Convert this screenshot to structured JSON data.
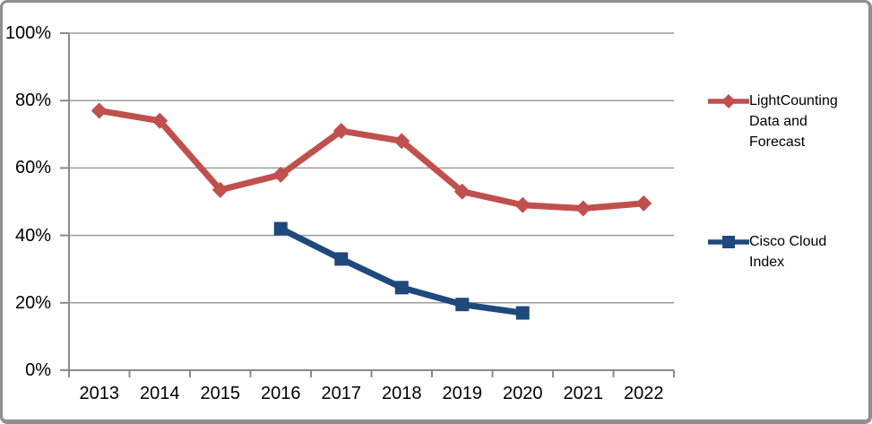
{
  "chart_data": {
    "type": "line",
    "title": "",
    "xlabel": "",
    "ylabel": "",
    "x": [
      "2013",
      "2014",
      "2015",
      "2016",
      "2017",
      "2018",
      "2019",
      "2020",
      "2021",
      "2022"
    ],
    "series": [
      {
        "name": "LightCounting Data and Forecast",
        "color": "#C0504D",
        "marker": "diamond",
        "values": [
          77,
          74,
          53.5,
          58,
          71,
          68,
          53,
          49,
          48,
          49.5
        ]
      },
      {
        "name": "Cisco Cloud Index",
        "color": "#1F497D",
        "marker": "square",
        "values": [
          null,
          null,
          null,
          42,
          33,
          24.5,
          19.5,
          17,
          null,
          null
        ]
      }
    ],
    "ylim": [
      0,
      100
    ],
    "ytick_values": [
      0,
      20,
      40,
      60,
      80,
      100
    ],
    "ytick_labels": [
      "0%",
      "20%",
      "40%",
      "60%",
      "80%",
      "100%"
    ],
    "grid": "horizontal",
    "legend_position": "right"
  },
  "colors": {
    "series1": "#C0504D",
    "series2": "#1F497D",
    "gridline": "#9B9B9B",
    "axis": "#8A8A8A",
    "frame_border": "#8F8F8F",
    "text": "#000000",
    "background": "#FFFFFF"
  }
}
